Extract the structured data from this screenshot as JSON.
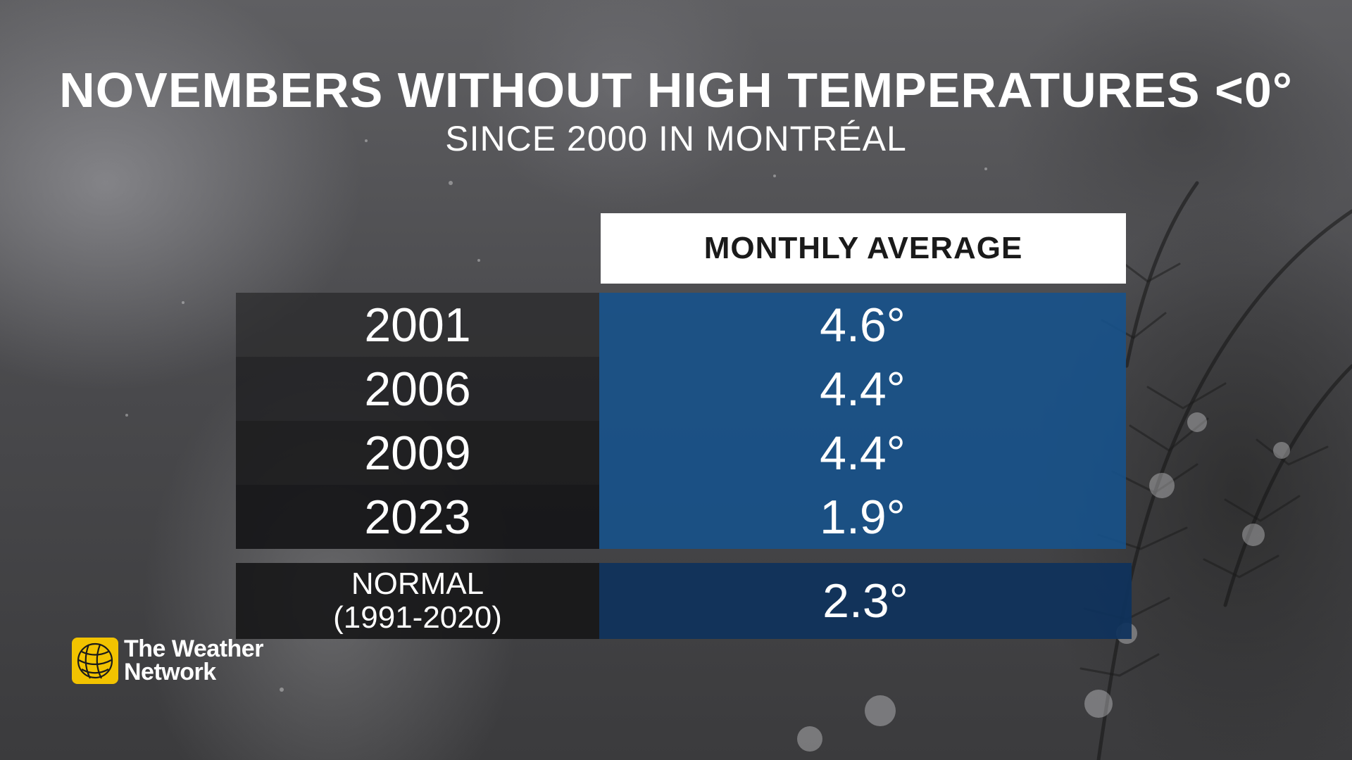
{
  "title": "NOVEMBERS WITHOUT HIGH TEMPERATURES <0°",
  "subtitle": "SINCE 2000 IN MONTRÉAL",
  "column_header": "MONTHLY AVERAGE",
  "rows": [
    {
      "year": "2001",
      "value": "4.6°"
    },
    {
      "year": "2006",
      "value": "4.4°"
    },
    {
      "year": "2009",
      "value": "4.4°"
    },
    {
      "year": "2023",
      "value": "1.9°"
    }
  ],
  "normal": {
    "label_line1": "NORMAL",
    "label_line2": "(1991-2020)",
    "value": "2.3°"
  },
  "logo": {
    "line1": "The Weather",
    "line2": "Network",
    "icon": "weather-network-globe-icon",
    "color": "#f2c300"
  },
  "colors": {
    "value_column": "#16528c",
    "normal_value": "#0e325c",
    "header_bg": "#ffffff"
  },
  "chart_data": {
    "type": "table",
    "title": "NOVEMBERS WITHOUT HIGH TEMPERATURES <0°",
    "subtitle": "SINCE 2000 IN MONTRÉAL",
    "columns": [
      "",
      "MONTHLY AVERAGE"
    ],
    "categories": [
      "2001",
      "2006",
      "2009",
      "2023",
      "NORMAL (1991-2020)"
    ],
    "values": [
      4.6,
      4.4,
      4.4,
      1.9,
      2.3
    ],
    "unit": "°"
  }
}
